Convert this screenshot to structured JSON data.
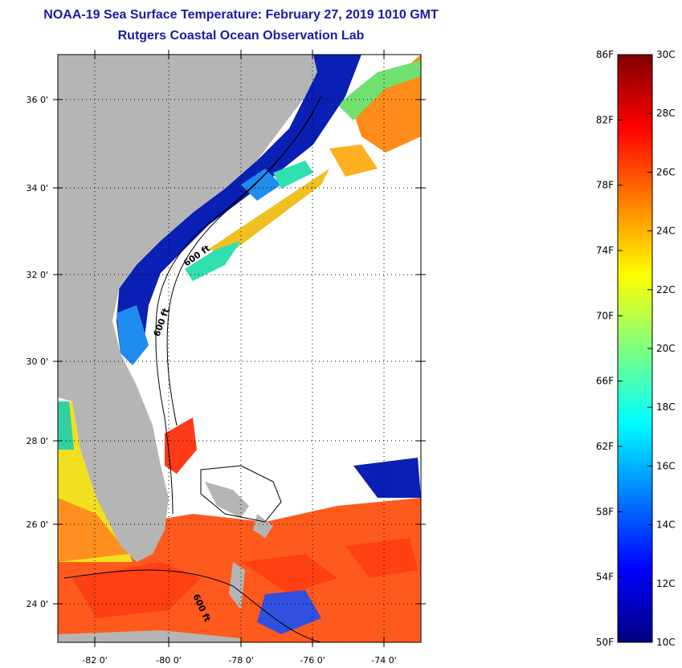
{
  "header": {
    "title": "NOAA-19 Sea Surface Temperature:  February 27, 2019 1010 GMT",
    "subtitle": "Rutgers Coastal Ocean Observation Lab"
  },
  "map": {
    "lat_ticks": [
      "36 0'",
      "34 0'",
      "32 0'",
      "30 0'",
      "28 0'",
      "26 0'",
      "24 0'"
    ],
    "lon_ticks": [
      "-82 0'",
      "-80 0'",
      "-78 0'",
      "-76 0'",
      "-74 0'"
    ],
    "contour_labels": [
      "600 ft",
      "600 ft",
      "600 ft"
    ],
    "colors": {
      "land": "#b5b5b5",
      "cloud": "#ffffff",
      "cold": "#0a1fb4",
      "cool": "#1f8cf0",
      "mid": "#30e0b0",
      "warm": "#ff8c1a",
      "hot": "#ff4a18"
    }
  },
  "colorbar": {
    "fahrenheit_labels": [
      "86F",
      "82F",
      "78F",
      "74F",
      "70F",
      "66F",
      "62F",
      "58F",
      "54F",
      "50F"
    ],
    "celsius_labels": [
      "30C",
      "28C",
      "26C",
      "24C",
      "22C",
      "20C",
      "18C",
      "16C",
      "14C",
      "12C",
      "10C"
    ]
  }
}
